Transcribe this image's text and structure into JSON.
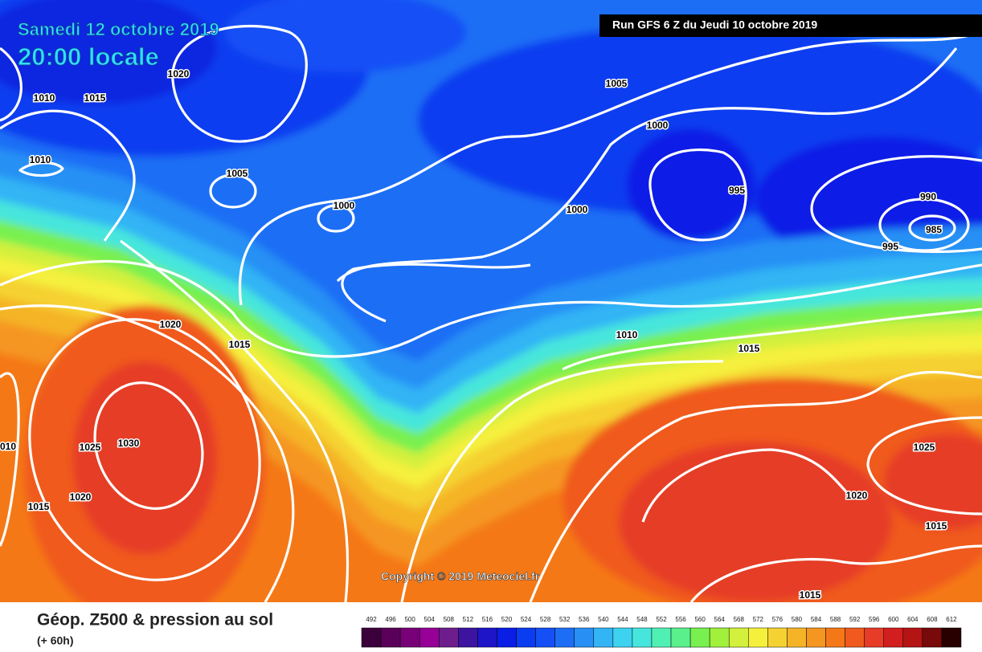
{
  "header": {
    "date": "Samedi 12 octobre 2019",
    "time": "20:00 locale",
    "run": "Run GFS 6 Z du Jeudi 10 octobre 2019"
  },
  "map": {
    "isobar_labels": [
      "1020",
      "1010",
      "1015",
      "1010",
      "1005",
      "1000",
      "1005",
      "1000",
      "1000",
      "995",
      "990",
      "985",
      "995",
      "1020",
      "1015",
      "1010",
      "1015",
      "1025",
      "1030",
      "1015",
      "1020",
      "1025",
      "1020",
      "1015",
      "1015",
      "010"
    ],
    "copyright": "Copyright © 2019 Meteociel.fr"
  },
  "footer": {
    "title": "Géop. Z500 & pression au sol",
    "subtitle": "(+ 60h)"
  },
  "legend": {
    "values": [
      492,
      496,
      500,
      504,
      508,
      512,
      516,
      520,
      524,
      528,
      532,
      536,
      540,
      544,
      548,
      552,
      556,
      560,
      564,
      568,
      572,
      576,
      580,
      584,
      588,
      592,
      596,
      600,
      604,
      608,
      612
    ],
    "colors": [
      "#3c003c",
      "#5a005a",
      "#780078",
      "#960096",
      "#6e1e8c",
      "#3c14a0",
      "#1e14c8",
      "#0a1ee6",
      "#0a3cf0",
      "#1450f5",
      "#1e6ef5",
      "#2890f5",
      "#32b4f5",
      "#3cd2f0",
      "#46e6dc",
      "#50f0b4",
      "#5af08c",
      "#78f050",
      "#a0f03c",
      "#d2f03c",
      "#f5f03c",
      "#f5d232",
      "#f5b428",
      "#f59620",
      "#f57818",
      "#f05a1e",
      "#e63c28",
      "#d21e1e",
      "#b41414",
      "#780a0a",
      "#280000"
    ]
  }
}
